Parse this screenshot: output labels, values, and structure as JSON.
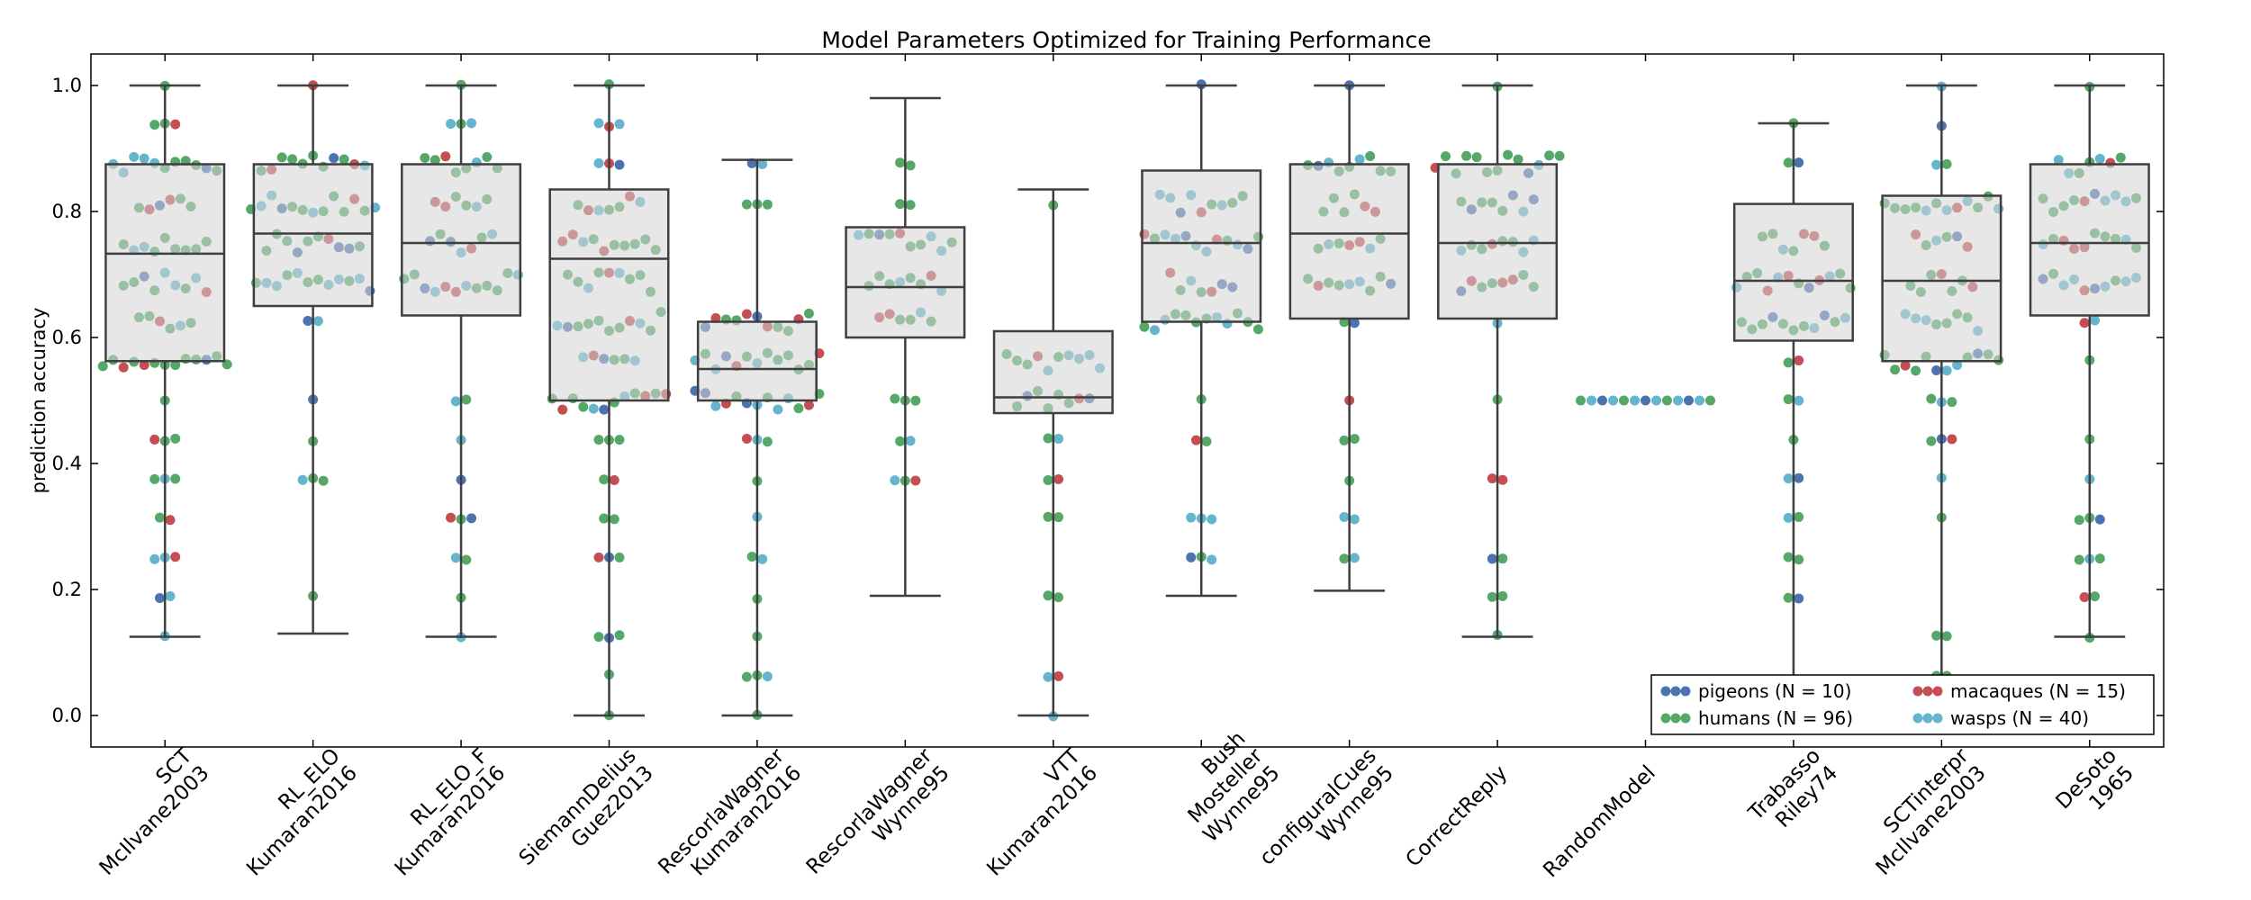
{
  "chart_data": {
    "type": "box+swarm",
    "title": "Model Parameters Optimized for Training Performance",
    "xlabel": "",
    "ylabel": "prediction accuracy",
    "ylim": [
      -0.05,
      1.05
    ],
    "yticks": [
      "0.0",
      "0.2",
      "0.4",
      "0.6",
      "0.8",
      "1.0"
    ],
    "ytick_values": [
      0.0,
      0.2,
      0.4,
      0.6,
      0.8,
      1.0
    ],
    "grid": false,
    "legend_position": "bottom-right",
    "legend": [
      {
        "label": "pigeons (N = 10)",
        "color": "#4c72b0"
      },
      {
        "label": "macaques (N = 15)",
        "color": "#c44e52"
      },
      {
        "label": "humans (N = 96)",
        "color": "#55a868"
      },
      {
        "label": "wasps (N = 40)",
        "color": "#64b5cd"
      }
    ],
    "box_color": "#d3d3d3",
    "categories": [
      {
        "lines": [
          "SCT",
          "McIlvane2003"
        ],
        "min": 0.125,
        "q1": 0.5625,
        "median": 0.733,
        "q3": 0.875,
        "max": 1.0
      },
      {
        "lines": [
          "RL_ELO",
          "Kumaran2016"
        ],
        "min": 0.13,
        "q1": 0.65,
        "median": 0.765,
        "q3": 0.875,
        "max": 1.0
      },
      {
        "lines": [
          "RL_ELO_F",
          "Kumaran2016"
        ],
        "min": 0.125,
        "q1": 0.635,
        "median": 0.75,
        "q3": 0.875,
        "max": 1.0
      },
      {
        "lines": [
          "SiemannDelius",
          "Guez2013"
        ],
        "min": 0.0,
        "q1": 0.5,
        "median": 0.725,
        "q3": 0.835,
        "max": 1.0
      },
      {
        "lines": [
          "RescorlaWagner",
          "Kumaran2016"
        ],
        "min": 0.0,
        "q1": 0.5,
        "median": 0.55,
        "q3": 0.625,
        "max": 0.882
      },
      {
        "lines": [
          "RescorlaWagner",
          "Wynne95"
        ],
        "min": 0.19,
        "q1": 0.6,
        "median": 0.68,
        "q3": 0.775,
        "max": 0.98
      },
      {
        "lines": [
          "VTT",
          "Kumaran2016"
        ],
        "min": 0.0,
        "q1": 0.48,
        "median": 0.505,
        "q3": 0.61,
        "max": 0.835
      },
      {
        "lines": [
          "Bush",
          "Mosteller",
          "Wynne95"
        ],
        "min": 0.19,
        "q1": 0.625,
        "median": 0.75,
        "q3": 0.865,
        "max": 1.0
      },
      {
        "lines": [
          "configuralCues",
          "Wynne95"
        ],
        "min": 0.198,
        "q1": 0.63,
        "median": 0.765,
        "q3": 0.875,
        "max": 1.0
      },
      {
        "lines": [
          "CorrectReply"
        ],
        "min": 0.125,
        "q1": 0.63,
        "median": 0.75,
        "q3": 0.875,
        "max": 1.0
      },
      {
        "lines": [
          "RandomModel"
        ],
        "min": 0.5,
        "q1": 0.5,
        "median": 0.5,
        "q3": 0.5,
        "max": 0.5
      },
      {
        "lines": [
          "Trabasso",
          "Riley74"
        ],
        "min": 0.063,
        "q1": 0.595,
        "median": 0.69,
        "q3": 0.812,
        "max": 0.94
      },
      {
        "lines": [
          "SCTinterpr",
          "McIlvane2003"
        ],
        "min": 0.0,
        "q1": 0.5625,
        "median": 0.69,
        "q3": 0.825,
        "max": 1.0
      },
      {
        "lines": [
          "DeSoto",
          "1965"
        ],
        "min": 0.125,
        "q1": 0.635,
        "median": 0.75,
        "q3": 0.875,
        "max": 1.0
      }
    ]
  }
}
